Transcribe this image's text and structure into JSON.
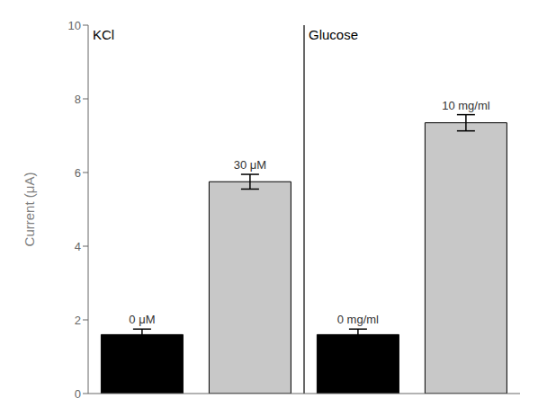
{
  "chart_data": {
    "type": "bar",
    "ylabel": "Current (μA)",
    "categories": [
      "0 μM",
      "30 μM",
      "0 mg/ml",
      "10 mg/ml"
    ],
    "values": [
      1.6,
      5.75,
      1.6,
      7.35
    ],
    "errors": [
      0.15,
      0.2,
      0.15,
      0.22
    ],
    "colors": [
      "#000000",
      "#c8c8c8",
      "#000000",
      "#c8c8c8"
    ],
    "ylim": [
      0,
      10
    ],
    "yticks": [
      0,
      2,
      4,
      6,
      8,
      10
    ],
    "annotations": [
      "KCl",
      "Glucose"
    ],
    "tick_labels": "y",
    "grid": false
  }
}
